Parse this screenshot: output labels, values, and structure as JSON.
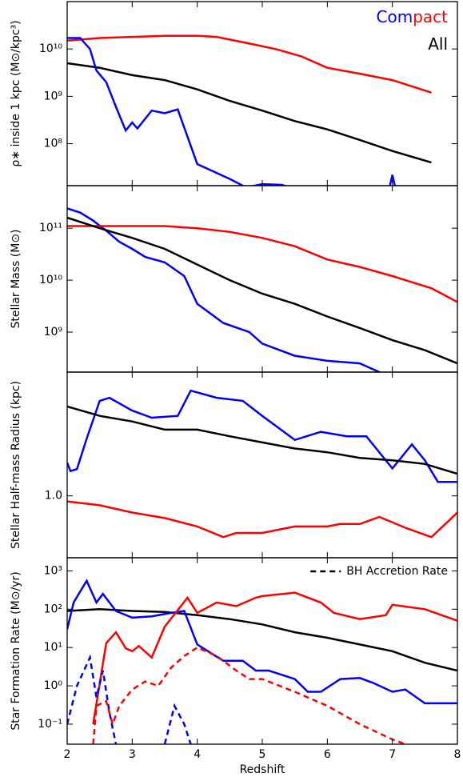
{
  "chart_data": [
    {
      "type": "line",
      "log_y": true,
      "ylabel": "ρ∗ inside 1 kpc (M⊙/kpc³)",
      "xlim": [
        2,
        8
      ],
      "xticks": [
        2,
        3,
        4,
        5,
        6,
        7,
        8
      ],
      "ylim": [
        13000000.0,
        100000000000.0
      ],
      "yticks": [
        {
          "value": 100000000.0,
          "label": "10⁸"
        },
        {
          "value": 1000000000.0,
          "label": "10⁹"
        },
        {
          "value": 10000000000.0,
          "label": "10¹⁰"
        }
      ],
      "legend": [
        [
          {
            "text": "Com",
            "color": "#0000ff"
          },
          {
            "text": "pact",
            "color": "#ff0000"
          }
        ],
        [
          {
            "text": "All",
            "color": "#000000"
          }
        ]
      ],
      "series": [
        {
          "color": "#ff0000",
          "x": [
            2,
            2.5,
            3,
            3.5,
            4,
            4.3,
            4.8,
            5.2,
            5.6,
            6,
            6.5,
            7,
            7.6
          ],
          "values": [
            15000000000.0,
            17000000000.0,
            18000000000.0,
            19000000000.0,
            19000000000.0,
            18000000000.0,
            13000000000.0,
            10000000000.0,
            7000000000.0,
            4000000000.0,
            3000000000.0,
            2200000000.0,
            1200000000.0
          ]
        },
        {
          "color": "#000000",
          "x": [
            2,
            2.5,
            3,
            3.5,
            4,
            4.5,
            5,
            5.5,
            6,
            6.5,
            7,
            7.6
          ],
          "values": [
            5000000000.0,
            4000000000.0,
            2800000000.0,
            2200000000.0,
            1400000000.0,
            800000000.0,
            500000000.0,
            300000000.0,
            200000000.0,
            120000000.0,
            70000000.0,
            40000000.0
          ]
        },
        {
          "color": "#0000ff",
          "x": [
            2,
            2.2,
            2.35,
            2.45,
            2.6,
            2.75,
            2.9,
            3.0,
            3.08,
            3.3,
            3.5,
            3.7,
            4.0,
            4.5,
            4.75,
            5.0,
            5.3,
            5.5,
            6.9,
            6.95,
            7.0,
            7.05
          ],
          "values": [
            17000000000.0,
            17000000000.0,
            10000000000.0,
            3500000000.0,
            2000000000.0,
            600000000.0,
            190000000.0,
            280000000.0,
            210000000.0,
            500000000.0,
            440000000.0,
            530000000.0,
            37000000.0,
            18000000.0,
            12000000.0,
            14000000.0,
            13500000.0,
            11000000.0,
            null,
            11000000.0,
            22000000.0,
            11000000.0
          ]
        }
      ]
    },
    {
      "type": "line",
      "log_y": true,
      "ylabel": "Stellar Mass (M⊙)",
      "xlim": [
        2,
        8
      ],
      "xticks": [
        2,
        3,
        4,
        5,
        6,
        7,
        8
      ],
      "ylim": [
        170000000.0,
        660000000000.0
      ],
      "yticks": [
        {
          "value": 1000000000.0,
          "label": "10⁹"
        },
        {
          "value": 10000000000.0,
          "label": "10¹⁰"
        },
        {
          "value": 100000000000.0,
          "label": "10¹¹"
        }
      ],
      "series": [
        {
          "color": "#0000ff",
          "x": [
            2,
            2.2,
            2.4,
            2.6,
            2.8,
            3,
            3.2,
            3.5,
            3.8,
            4,
            4.4,
            4.8,
            5,
            5.5,
            6,
            6.5,
            6.8,
            7
          ],
          "values": [
            240000000000.0,
            200000000000.0,
            140000000000.0,
            90000000000.0,
            55000000000.0,
            40000000000.0,
            28000000000.0,
            22000000000.0,
            12000000000.0,
            3500000000.0,
            1500000000.0,
            1000000000.0,
            600000000.0,
            350000000.0,
            280000000.0,
            250000000.0,
            170000000.0,
            130000000.0
          ]
        },
        {
          "color": "#ff0000",
          "x": [
            2,
            2.5,
            3,
            3.5,
            4,
            4.5,
            5,
            5.5,
            6,
            6.5,
            7,
            7.6,
            8
          ],
          "values": [
            110000000000.0,
            110000000000.0,
            110000000000.0,
            110000000000.0,
            100000000000.0,
            85000000000.0,
            65000000000.0,
            45000000000.0,
            25000000000.0,
            18000000000.0,
            12000000000.0,
            7000000000.0,
            3800000000.0
          ]
        },
        {
          "color": "#000000",
          "x": [
            2,
            2.5,
            3,
            3.5,
            4,
            4.5,
            5,
            5.5,
            6,
            6.5,
            7,
            7.5,
            8
          ],
          "values": [
            160000000000.0,
            100000000000.0,
            65000000000.0,
            40000000000.0,
            20000000000.0,
            10000000000.0,
            5500000000.0,
            3500000000.0,
            2000000000.0,
            1200000000.0,
            700000000.0,
            450000000.0,
            250000000.0
          ]
        }
      ]
    },
    {
      "type": "line",
      "log_y": true,
      "ylabel": "Stellar Half-mass Radius (kpc)",
      "xlim": [
        2,
        8
      ],
      "xticks": [
        2,
        3,
        4,
        5,
        6,
        7,
        8
      ],
      "ylim": [
        0.5,
        4
      ],
      "yticks": [
        {
          "value": 1,
          "label": "1.0"
        }
      ],
      "series": [
        {
          "color": "#0000ff",
          "x": [
            2,
            2.05,
            2.15,
            2.3,
            2.5,
            2.65,
            3.0,
            3.3,
            3.7,
            3.9,
            4.3,
            4.7,
            5.0,
            5.5,
            5.9,
            6.3,
            6.6,
            7.0,
            7.3,
            7.5,
            7.7,
            8
          ],
          "values": [
            1.45,
            1.32,
            1.35,
            1.9,
            2.9,
            3.0,
            2.6,
            2.4,
            2.45,
            3.25,
            3.0,
            2.9,
            2.45,
            1.87,
            2.05,
            1.95,
            1.95,
            1.36,
            1.78,
            1.49,
            1.17,
            1.17
          ]
        },
        {
          "color": "#000000",
          "x": [
            2,
            2.5,
            3,
            3.5,
            4,
            4.5,
            5,
            5.5,
            6,
            6.5,
            7,
            7.5,
            8
          ],
          "values": [
            2.72,
            2.45,
            2.3,
            2.1,
            2.1,
            1.95,
            1.82,
            1.7,
            1.63,
            1.53,
            1.49,
            1.43,
            1.28
          ]
        },
        {
          "color": "#ff0000",
          "x": [
            2,
            2.5,
            3,
            3.5,
            4,
            4.4,
            4.6,
            5,
            5.5,
            6,
            6.2,
            6.5,
            6.8,
            7.2,
            7.6,
            8
          ],
          "values": [
            0.94,
            0.9,
            0.83,
            0.78,
            0.71,
            0.63,
            0.66,
            0.66,
            0.71,
            0.71,
            0.73,
            0.73,
            0.79,
            0.7,
            0.63,
            0.83
          ]
        }
      ]
    },
    {
      "type": "line",
      "log_y": true,
      "ylabel": "Star Formation Rate (M⊙/yr)",
      "xlabel": "Redshift",
      "xlim": [
        2,
        8
      ],
      "xticks": [
        2,
        3,
        4,
        5,
        6,
        7,
        8
      ],
      "ylim": [
        0.03,
        2200
      ],
      "yticks": [
        {
          "value": 0.1,
          "label": "10⁻¹"
        },
        {
          "value": 1,
          "label": "10⁰"
        },
        {
          "value": 10,
          "label": "10¹"
        },
        {
          "value": 100,
          "label": "10²"
        },
        {
          "value": 1000,
          "label": "10³"
        }
      ],
      "legend": [
        [
          {
            "text": "BH Accretion Rate",
            "color": "#000000",
            "dashed": true
          }
        ]
      ],
      "series": [
        {
          "color": "#000000",
          "x": [
            2,
            2.5,
            3,
            3.5,
            4,
            4.5,
            5,
            5.5,
            6,
            6.5,
            7,
            7.5,
            8
          ],
          "values": [
            90,
            100,
            90,
            85,
            70,
            55,
            40,
            25,
            18,
            12,
            8,
            4,
            2.5
          ]
        },
        {
          "color": "#0000ff",
          "x": [
            2,
            2.1,
            2.25,
            2.3,
            2.45,
            2.55,
            2.75,
            3,
            3.3,
            3.6,
            3.8,
            4,
            4.4,
            4.7,
            4.9,
            5.1,
            5.5,
            5.7,
            5.9,
            6.2,
            6.5,
            6.7,
            7,
            7.2,
            7.5,
            8
          ],
          "values": [
            30,
            150,
            400,
            550,
            150,
            250,
            90,
            60,
            65,
            80,
            90,
            12,
            4.5,
            4.5,
            2.5,
            2.5,
            1.5,
            0.7,
            0.7,
            1.5,
            1.6,
            1.2,
            0.7,
            0.8,
            0.35,
            0.35
          ]
        },
        {
          "color": "#ff0000",
          "x": [
            2.4,
            2.6,
            2.75,
            2.9,
            3,
            3.1,
            3.3,
            3.5,
            3.85,
            4,
            4.3,
            4.6,
            4.9,
            5,
            5.5,
            5.9,
            6.1,
            6.5,
            6.9,
            7,
            7.5,
            8
          ],
          "values": [
            0.1,
            13,
            25,
            9.5,
            8,
            11,
            5.5,
            35,
            200,
            80,
            150,
            120,
            200,
            220,
            270,
            150,
            80,
            55,
            70,
            130,
            100,
            50
          ]
        },
        {
          "color": "#0000ff",
          "dashed": true,
          "x": [
            2,
            2.15,
            2.35,
            2.45,
            2.55,
            2.65,
            2.75,
            3.4,
            3.5,
            3.65,
            3.8,
            3.9
          ],
          "values": [
            0.1,
            1,
            5.5,
            0.5,
            2.5,
            0.2,
            0.03,
            null,
            0.03,
            0.3,
            0.1,
            0.03
          ]
        },
        {
          "color": "#ff0000",
          "dashed": true,
          "x": [
            2.4,
            2.45,
            2.6,
            2.7,
            2.8,
            3.0,
            3.2,
            3.4,
            3.6,
            3.8,
            4,
            4.3,
            4.6,
            4.8,
            5,
            5.5,
            6,
            6.5,
            7,
            7.2
          ],
          "values": [
            0.03,
            0.3,
            0.4,
            0.1,
            0.3,
            0.8,
            1.3,
            1,
            3,
            6,
            10,
            6,
            2.5,
            1.5,
            1.5,
            0.7,
            0.3,
            0.1,
            0.04,
            0.03
          ]
        }
      ]
    }
  ]
}
